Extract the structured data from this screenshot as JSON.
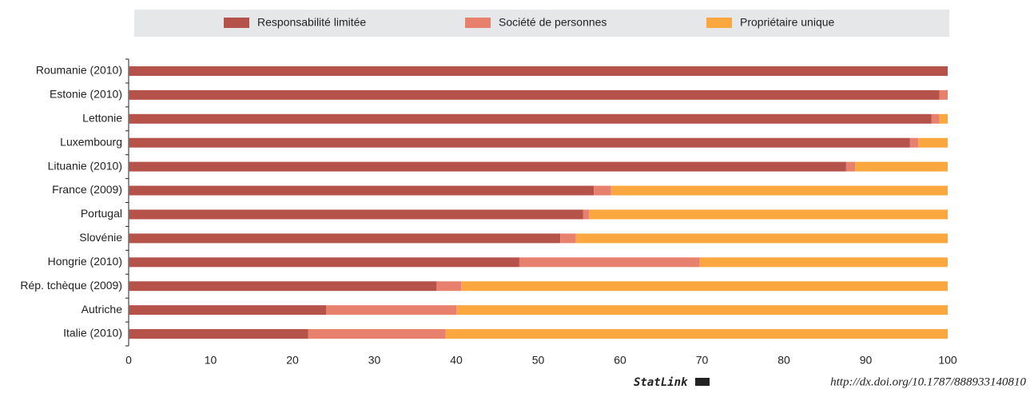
{
  "chart_data": {
    "type": "hbar_stacked",
    "categories": [
      "Roumanie (2010)",
      "Estonie (2010)",
      "Lettonie",
      "Luxembourg",
      "Lituanie (2010)",
      "France (2009)",
      "Portugal",
      "Slovénie",
      "Hongrie (2010)",
      "Rép. tchèque (2009)",
      "Autriche",
      "Italie (2010)"
    ],
    "series": [
      {
        "name": "Responsabilité limitée",
        "color": "#b5524a",
        "values": [
          100,
          99.0,
          98.0,
          95.4,
          87.6,
          56.8,
          55.5,
          52.7,
          47.7,
          37.6,
          24.1,
          21.9
        ]
      },
      {
        "name": "Société de personnes",
        "color": "#e8806e",
        "values": [
          0,
          1.0,
          1.0,
          1.0,
          1.1,
          2.1,
          0.7,
          1.9,
          22.0,
          3.0,
          15.9,
          16.8
        ]
      },
      {
        "name": "Propriétaire unique",
        "color": "#f9a73e",
        "values": [
          0,
          0,
          1.0,
          3.6,
          11.3,
          41.1,
          43.8,
          45.4,
          30.3,
          59.4,
          60.0,
          61.3
        ]
      }
    ],
    "xlim": [
      0,
      100
    ],
    "xticks": [
      0,
      10,
      20,
      30,
      40,
      50,
      60,
      70,
      80,
      90,
      100
    ],
    "legend": "top",
    "statlink_label": "StatLink",
    "statlink_url": "http://dx.doi.org/10.1787/888933140810"
  }
}
